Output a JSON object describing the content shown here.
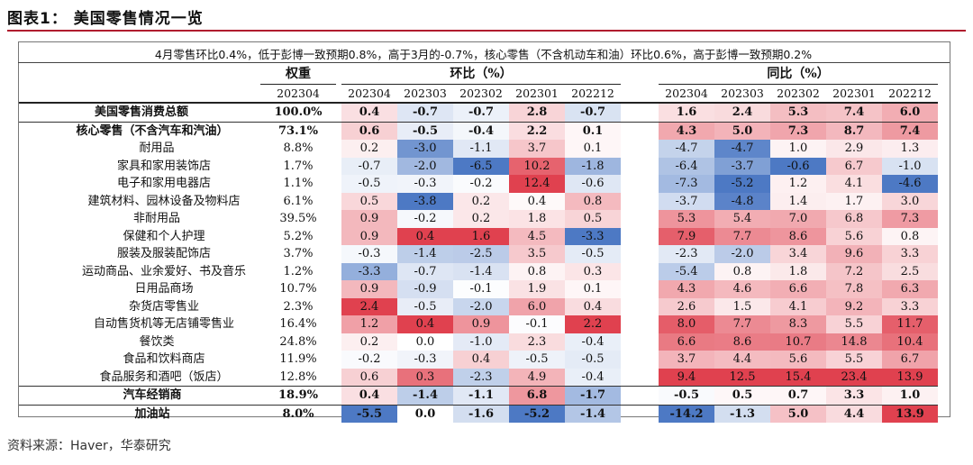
{
  "title": "图表1：  美国零售情况一览",
  "summary": "4月零售环比0.4%，低于彭博一致预期0.8%，高于3月的-0.7%，核心零售（不含机动车和油）环比0.6%，高于彭博一致预期0.2%",
  "headers": {
    "weight": "权重",
    "mom": "环比（%）",
    "yoy": "同比（%）",
    "weight_period": "202304",
    "periods": [
      "202304",
      "202303",
      "202302",
      "202301",
      "202212"
    ]
  },
  "rows": [
    {
      "name": "美国零售消费总额",
      "weight": "100.0%",
      "mom": [
        "0.4",
        "-0.7",
        "-0.7",
        "2.8",
        "-0.7"
      ],
      "yoy": [
        "1.6",
        "2.4",
        "5.3",
        "7.4",
        "6.0"
      ]
    },
    {
      "name": "核心零售（不含汽车和汽油）",
      "weight": "73.1%",
      "mom": [
        "0.6",
        "-0.5",
        "-0.4",
        "2.2",
        "0.1"
      ],
      "yoy": [
        "4.3",
        "5.0",
        "7.3",
        "8.7",
        "7.4"
      ]
    },
    {
      "name": "耐用品",
      "weight": "8.8%",
      "mom": [
        "0.2",
        "-3.0",
        "-1.1",
        "3.7",
        "0.1"
      ],
      "yoy": [
        "-4.7",
        "-4.7",
        "1.0",
        "2.9",
        "1.3"
      ]
    },
    {
      "name": "家具和家用装饰店",
      "weight": "1.7%",
      "mom": [
        "-0.7",
        "-2.0",
        "-6.5",
        "10.2",
        "-1.8"
      ],
      "yoy": [
        "-6.4",
        "-3.7",
        "-0.6",
        "6.7",
        "-1.0"
      ]
    },
    {
      "name": "电子和家用电器店",
      "weight": "1.1%",
      "mom": [
        "-0.5",
        "-0.3",
        "-0.2",
        "12.4",
        "-0.6"
      ],
      "yoy": [
        "-7.3",
        "-5.2",
        "1.2",
        "4.1",
        "-4.6"
      ]
    },
    {
      "name": "建筑材料、园林设备及物料店",
      "weight": "6.1%",
      "mom": [
        "0.5",
        "-3.8",
        "0.2",
        "0.4",
        "0.8"
      ],
      "yoy": [
        "-3.7",
        "-4.8",
        "1.4",
        "1.7",
        "3.0"
      ]
    },
    {
      "name": "非耐用品",
      "weight": "39.5%",
      "mom": [
        "0.9",
        "-0.2",
        "0.2",
        "1.8",
        "0.5"
      ],
      "yoy": [
        "5.3",
        "5.4",
        "7.0",
        "6.8",
        "7.3"
      ]
    },
    {
      "name": "保健和个人护理",
      "weight": "5.2%",
      "mom": [
        "0.9",
        "0.4",
        "1.6",
        "4.5",
        "-3.3"
      ],
      "yoy": [
        "7.9",
        "7.7",
        "8.6",
        "5.6",
        "0.8"
      ]
    },
    {
      "name": "服装及服装配饰店",
      "weight": "3.7%",
      "mom": [
        "-0.3",
        "-1.4",
        "-2.5",
        "3.5",
        "-0.5"
      ],
      "yoy": [
        "-2.3",
        "-2.0",
        "3.4",
        "9.6",
        "3.3"
      ]
    },
    {
      "name": "运动商品、业余爱好、书及音乐",
      "weight": "1.2%",
      "mom": [
        "-3.3",
        "-0.7",
        "-1.4",
        "0.8",
        "0.3"
      ],
      "yoy": [
        "-5.4",
        "0.8",
        "1.8",
        "7.2",
        "2.5"
      ]
    },
    {
      "name": "日用品商场",
      "weight": "10.7%",
      "mom": [
        "0.9",
        "-0.9",
        "-0.1",
        "1.9",
        "0.1"
      ],
      "yoy": [
        "4.3",
        "4.6",
        "6.6",
        "7.8",
        "6.3"
      ]
    },
    {
      "name": "杂货店零售业",
      "weight": "2.3%",
      "mom": [
        "2.4",
        "-0.5",
        "-2.0",
        "6.0",
        "0.4"
      ],
      "yoy": [
        "2.6",
        "1.5",
        "4.1",
        "9.2",
        "3.3"
      ]
    },
    {
      "name": "自动售货机等无店铺零售业",
      "weight": "16.4%",
      "mom": [
        "1.2",
        "0.4",
        "0.9",
        "-0.1",
        "2.2"
      ],
      "yoy": [
        "8.0",
        "7.7",
        "8.3",
        "5.5",
        "11.7"
      ]
    },
    {
      "name": "餐饮类",
      "weight": "24.8%",
      "mom": [
        "0.2",
        "0.0",
        "-1.0",
        "2.3",
        "-0.4"
      ],
      "yoy": [
        "6.6",
        "8.6",
        "10.7",
        "14.8",
        "10.4"
      ]
    },
    {
      "name": "食品和饮料商店",
      "weight": "11.9%",
      "mom": [
        "-0.2",
        "-0.3",
        "0.4",
        "-0.5",
        "-0.5"
      ],
      "yoy": [
        "3.7",
        "4.4",
        "5.6",
        "5.5",
        "6.7"
      ]
    },
    {
      "name": "食品服务和酒吧（饭店）",
      "weight": "12.8%",
      "mom": [
        "0.6",
        "0.3",
        "-2.3",
        "4.9",
        "-0.4"
      ],
      "yoy": [
        "9.4",
        "12.5",
        "15.4",
        "23.4",
        "13.9"
      ]
    },
    {
      "name": "汽车经销商",
      "weight": "18.9%",
      "mom": [
        "0.4",
        "-1.4",
        "-1.1",
        "6.8",
        "-1.7"
      ],
      "yoy": [
        "-0.5",
        "0.5",
        "0.7",
        "3.3",
        "1.0"
      ]
    },
    {
      "name": "加油站",
      "weight": "8.0%",
      "mom": [
        "-5.5",
        "0.0",
        "-1.6",
        "-5.2",
        "-1.4"
      ],
      "yoy": [
        "-14.2",
        "-1.3",
        "5.0",
        "4.4",
        "13.9"
      ]
    }
  ],
  "source": "资料来源：Haver，华泰研究",
  "colors": {
    "negative": "#4d79c4",
    "positive": "#e0414f",
    "rule": "#b01c2e"
  }
}
